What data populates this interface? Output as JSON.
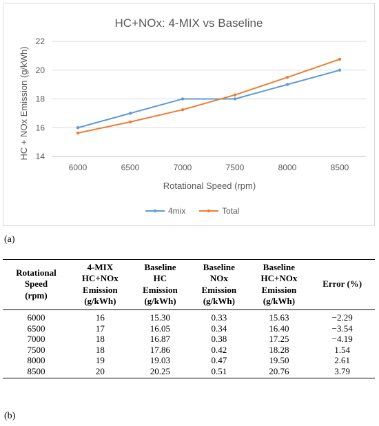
{
  "chart_data": {
    "type": "line",
    "title": "HC+NOx: 4-MIX vs Baseline",
    "xlabel": "Rotational Speed (rpm)",
    "ylabel": "HC + NOx Emission (g/kWh)",
    "x": [
      6000,
      6500,
      7000,
      7500,
      8000,
      8500
    ],
    "x_ticks": [
      "6000",
      "6500",
      "7000",
      "7500",
      "8000",
      "8500"
    ],
    "y_ticks": [
      "14",
      "16",
      "18",
      "20",
      "22"
    ],
    "ylim": [
      14,
      22
    ],
    "grid": "horizontal",
    "legend_position": "bottom",
    "series": [
      {
        "name": "4mix",
        "color": "#5b9bd5",
        "values": [
          16,
          17,
          18,
          18,
          19,
          20
        ]
      },
      {
        "name": "Total",
        "color": "#ed7d31",
        "values": [
          15.63,
          16.4,
          17.25,
          18.28,
          19.5,
          20.76
        ]
      }
    ]
  },
  "labels": {
    "panel_a": "(a)",
    "panel_b": "(b)"
  },
  "table": {
    "headers": [
      "Rotational\nSpeed\n(rpm)",
      "4-MIX\nHC+NOx\nEmission\n(g/kWh)",
      "Baseline\nHC\nEmission\n(g/kWh)",
      "Baseline\nNOx\nEmission\n(g/kWh)",
      "Baseline\nHC+NOx\nEmission\n(g/kWh)",
      "Error (%)"
    ],
    "rows": [
      [
        "6000",
        "16",
        "15.30",
        "0.33",
        "15.63",
        "−2.29"
      ],
      [
        "6500",
        "17",
        "16.05",
        "0.34",
        "16.40",
        "−3.54"
      ],
      [
        "7000",
        "18",
        "16.87",
        "0.38",
        "17.25",
        "−4.19"
      ],
      [
        "7500",
        "18",
        "17.86",
        "0.42",
        "18.28",
        "1.54"
      ],
      [
        "8000",
        "19",
        "19.03",
        "0.47",
        "19.50",
        "2.61"
      ],
      [
        "8500",
        "20",
        "20.25",
        "0.51",
        "20.76",
        "3.79"
      ]
    ]
  }
}
